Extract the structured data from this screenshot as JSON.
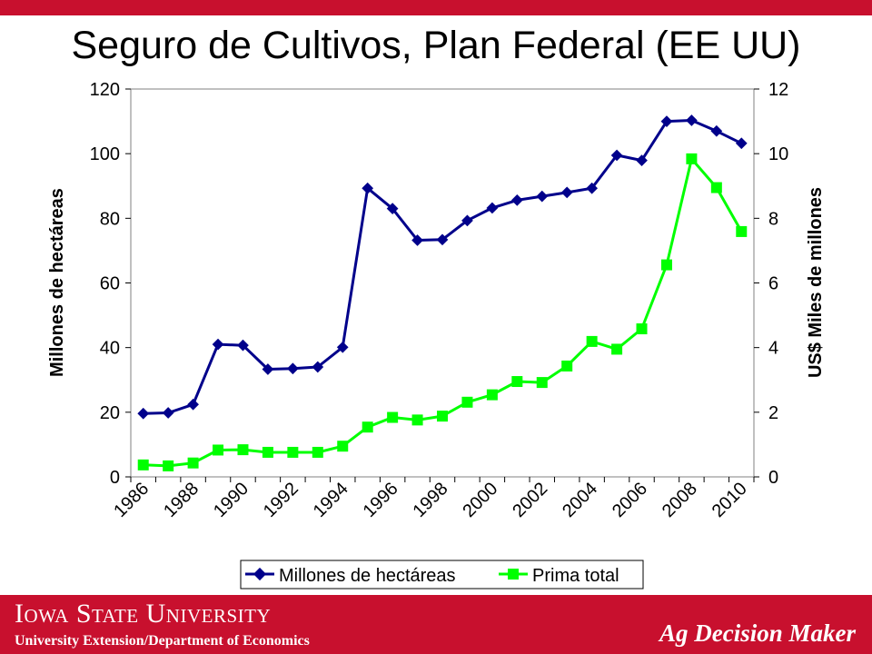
{
  "slide": {
    "title": "Seguro de Cultivos, Plan Federal (EE UU)"
  },
  "footer": {
    "university": "Iowa State University",
    "department": "University Extension/Department of Economics",
    "brand": "Ag Decision Maker"
  },
  "colors": {
    "accent_red": "#c8102e",
    "series_navy": "#00008b",
    "series_green": "#00ff00"
  },
  "chart_data": {
    "type": "line",
    "title": "",
    "xlabel": "",
    "ylabel": "Millones de hectáreas",
    "y2label": "US$ Miles de millones",
    "ylim": [
      0,
      120
    ],
    "y2lim": [
      0,
      12
    ],
    "yticks": [
      "0",
      "20",
      "40",
      "60",
      "80",
      "100",
      "120"
    ],
    "y2ticks": [
      "0",
      "2",
      "4",
      "6",
      "8",
      "10",
      "12"
    ],
    "xticks": [
      "1986",
      "1988",
      "1990",
      "1992",
      "1994",
      "1996",
      "1998",
      "2000",
      "2002",
      "2004",
      "2006",
      "2008",
      "2010"
    ],
    "x": [
      1986,
      1987,
      1988,
      1989,
      1990,
      1991,
      1992,
      1993,
      1994,
      1995,
      1996,
      1997,
      1998,
      1999,
      2000,
      2001,
      2002,
      2003,
      2004,
      2005,
      2006,
      2007,
      2008,
      2009,
      2010
    ],
    "grid": false,
    "legend_position": "bottom",
    "series": [
      {
        "name": "Millones de hectáreas",
        "axis": "left",
        "marker": "diamond",
        "color": "#00008b",
        "values": [
          19.6,
          19.8,
          22.4,
          41,
          40.7,
          33.3,
          33.5,
          34,
          40.1,
          89.3,
          83,
          73.2,
          73.4,
          79.3,
          83.2,
          85.6,
          86.8,
          88,
          89.3,
          99.5,
          97.9,
          110,
          110.3,
          107,
          103.2
        ]
      },
      {
        "name": "Prima total",
        "axis": "right",
        "marker": "square",
        "color": "#00ff00",
        "values": [
          0.37,
          0.34,
          0.43,
          0.83,
          0.84,
          0.76,
          0.76,
          0.76,
          0.95,
          1.54,
          1.84,
          1.76,
          1.88,
          2.31,
          2.54,
          2.95,
          2.92,
          3.43,
          4.19,
          3.95,
          4.58,
          6.56,
          9.84,
          8.95,
          7.59
        ]
      }
    ]
  }
}
